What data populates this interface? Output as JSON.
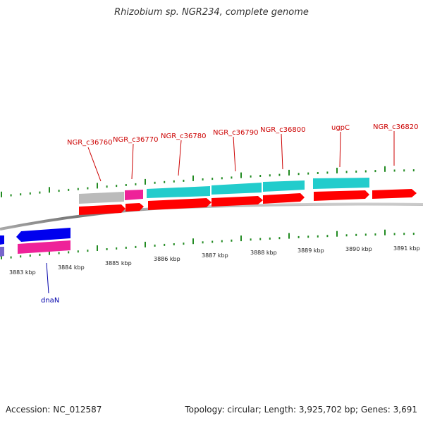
{
  "header": {
    "title": "Rhizobium sp. NGR234, complete genome"
  },
  "footer": {
    "accession": "Accession: NC_012587",
    "summary": "Topology: circular; Length: 3,925,702 bp; Genes: 3,691"
  },
  "colors": {
    "plus_label": "#cc0000",
    "minus_label": "#0000aa",
    "backbone": "#888888",
    "tick": "#228b22",
    "cds": "#ff0000",
    "gene_cyan": "#22cccc",
    "gene_grey": "#bbbbbb",
    "gene_magenta": "#ee2299",
    "gene_blue": "#0000ee",
    "gene_purple": "#7766cc"
  },
  "scale_labels": [
    "3883 kbp",
    "3884 kbp",
    "3885 kbp",
    "3886 kbp",
    "3887 kbp",
    "3888 kbp",
    "3889 kbp",
    "3890 kbp",
    "3891 kbp"
  ],
  "genes_plus": [
    {
      "label": "NGR_c36760"
    },
    {
      "label": "NGR_c36770"
    },
    {
      "label": "NGR_c36780"
    },
    {
      "label": "NGR_c36790"
    },
    {
      "label": "NGR_c36800"
    },
    {
      "label": "ugpC"
    },
    {
      "label": "NGR_c36820"
    }
  ],
  "genes_minus": [
    {
      "label": "dnaN"
    }
  ]
}
